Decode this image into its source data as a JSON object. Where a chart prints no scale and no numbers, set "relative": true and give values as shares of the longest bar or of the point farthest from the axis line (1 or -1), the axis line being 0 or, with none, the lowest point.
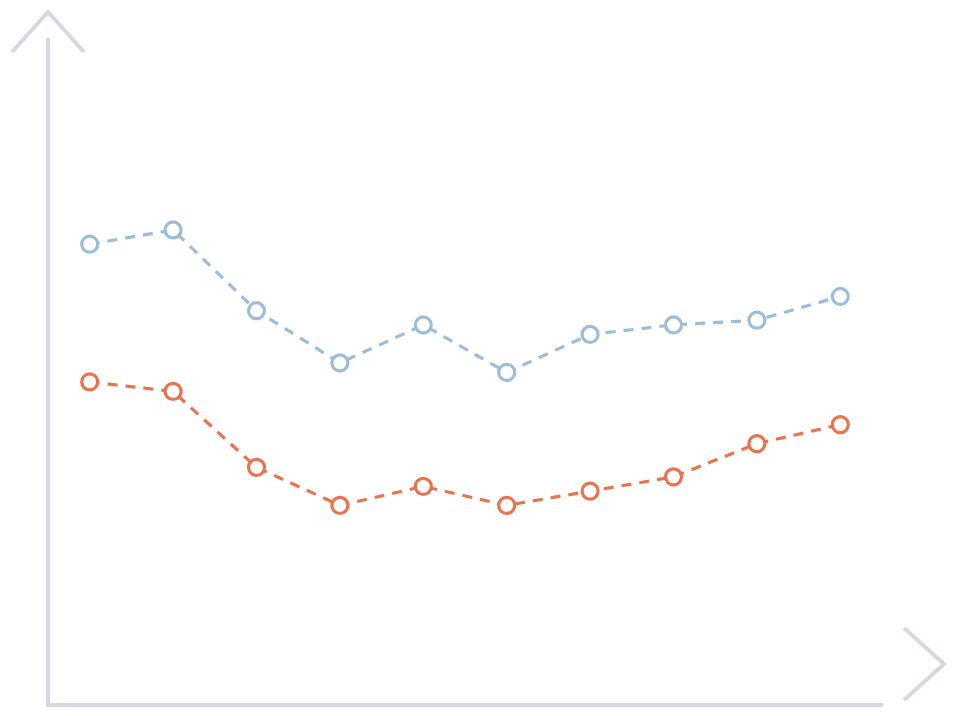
{
  "chart_data": {
    "type": "line",
    "relative": true,
    "categories": [
      null,
      null,
      null,
      null,
      null,
      null,
      null,
      null,
      null,
      null
    ],
    "series": [
      {
        "color": "#9dbcd8",
        "values": [
          0.97,
          1,
          0.83,
          0.72,
          0.8,
          0.7,
          0.78,
          0.8,
          0.81,
          0.86
        ]
      },
      {
        "color": "#e8734f",
        "values": [
          0.68,
          0.66,
          0.5,
          0.42,
          0.46,
          0.42,
          0.45,
          0.48,
          0.55,
          0.59
        ]
      }
    ],
    "marker": "circle",
    "line_style": "dashed",
    "grid": false,
    "legend": false
  }
}
